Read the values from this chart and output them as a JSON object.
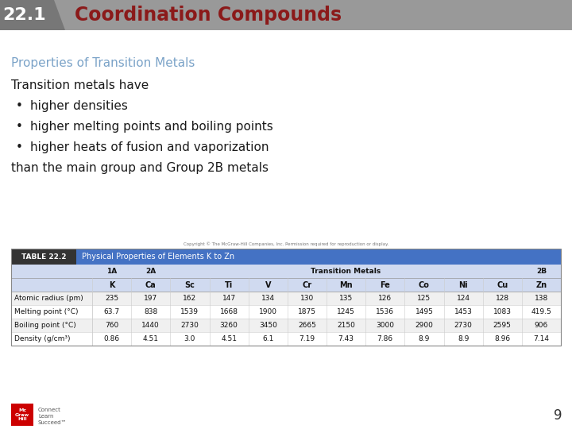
{
  "header_number": "22.1",
  "header_title": "Coordination Compounds",
  "header_bg_color": "#999999",
  "header_title_color": "#8B1A1A",
  "header_number_color": "#FFFFFF",
  "section_title": "Properties of Transition Metals",
  "section_title_color": "#7BA3C8",
  "body_text_intro": "Transition metals have",
  "bullets": [
    "higher densities",
    "higher melting points and boiling points",
    "higher heats of fusion and vaporization"
  ],
  "body_text_conclusion": "than the main group and Group 2B metals",
  "table_title_label": "TABLE 22.2",
  "table_title_text": "Physical Properties of Elements K to Zn",
  "table_header_bg": "#4472C4",
  "table_label_bg": "#333333",
  "table_subheader_bg": "#D0DAF0",
  "copyright_text": "Copyright © The McGraw-Hill Companies, Inc. Permission required for reproduction or display.",
  "elements": [
    "K",
    "Ca",
    "Sc",
    "Ti",
    "V",
    "Cr",
    "Mn",
    "Fe",
    "Co",
    "Ni",
    "Cu",
    "Zn"
  ],
  "groups": [
    {
      "label": "1A",
      "start": 0,
      "end": 0
    },
    {
      "label": "2A",
      "start": 1,
      "end": 1
    },
    {
      "label": "Transition Metals",
      "start": 2,
      "end": 10
    },
    {
      "label": "2B",
      "start": 11,
      "end": 11
    }
  ],
  "rows": [
    {
      "label": "Atomic radius (pm)",
      "values": [
        "235",
        "197",
        "162",
        "147",
        "134",
        "130",
        "135",
        "126",
        "125",
        "124",
        "128",
        "138"
      ]
    },
    {
      "label": "Melting point (°C)",
      "values": [
        "63.7",
        "838",
        "1539",
        "1668",
        "1900",
        "1875",
        "1245",
        "1536",
        "1495",
        "1453",
        "1083",
        "419.5"
      ]
    },
    {
      "label": "Boiling point (°C)",
      "values": [
        "760",
        "1440",
        "2730",
        "3260",
        "3450",
        "2665",
        "2150",
        "3000",
        "2900",
        "2730",
        "2595",
        "906"
      ]
    },
    {
      "label": "Density (g/cm³)",
      "values": [
        "0.86",
        "4.51",
        "3.0",
        "4.51",
        "6.1",
        "7.19",
        "7.43",
        "7.86",
        "8.9",
        "8.9",
        "8.96",
        "7.14"
      ]
    }
  ],
  "page_number": "9",
  "bg_color": "#FFFFFF"
}
